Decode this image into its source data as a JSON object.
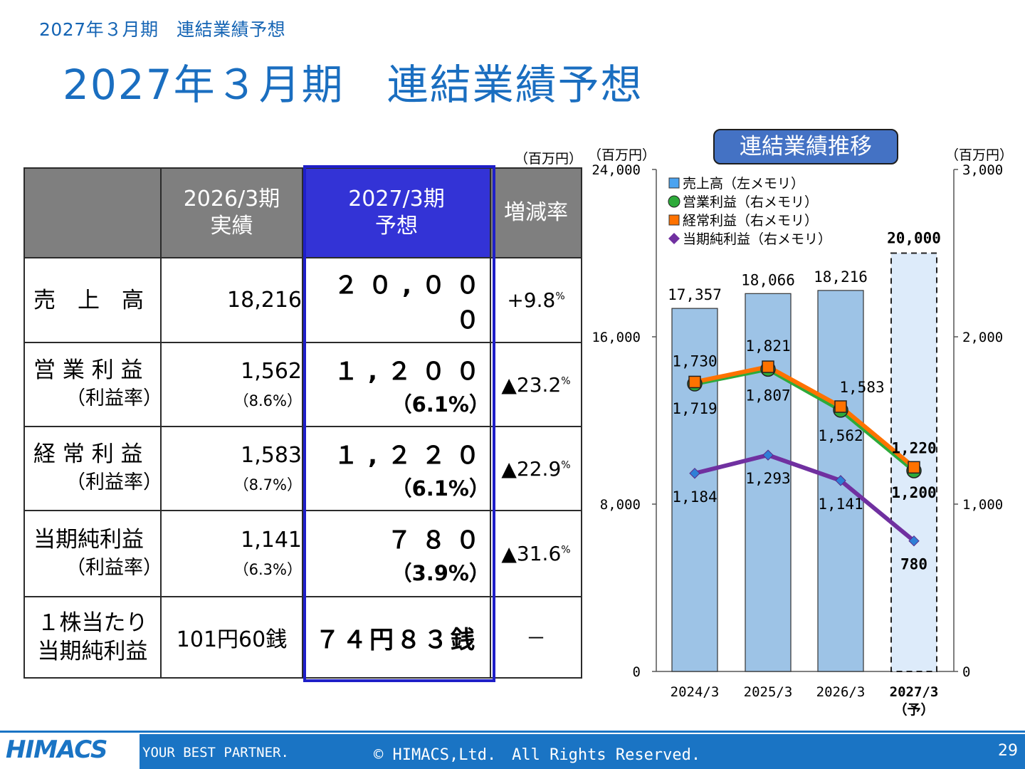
{
  "header": {
    "small": "2027年３月期　連結業績予想",
    "title": "2027年３月期　連結業績予想"
  },
  "table": {
    "unit": "（百万円）",
    "headers": [
      "",
      "2026/3期\n実績",
      "2027/3期\n予想",
      "増減率"
    ],
    "rows": [
      {
        "label": "売　上　高",
        "sub": "",
        "actual": "18,216",
        "actual_sub": "",
        "forecast": "２０,０００",
        "forecast_sub": "",
        "change": "+9.8",
        "pct": "%"
      },
      {
        "label": "営 業 利 益",
        "sub": "（利益率）",
        "actual": "1,562",
        "actual_sub": "（8.6%）",
        "forecast": "１,２００",
        "forecast_sub": "（6.1%）",
        "change": "▲23.2",
        "pct": "%"
      },
      {
        "label": "経 常 利 益",
        "sub": "（利益率）",
        "actual": "1,583",
        "actual_sub": "（8.7%）",
        "forecast": "１,２２０",
        "forecast_sub": "（6.1%）",
        "change": "▲22.9",
        "pct": "%"
      },
      {
        "label": "当期純利益",
        "sub": "（利益率）",
        "actual": "1,141",
        "actual_sub": "（6.3%）",
        "forecast": "７８０",
        "forecast_sub": "（3.9%）",
        "change": "▲31.6",
        "pct": "%"
      },
      {
        "label": "１株当たり",
        "sub": "当期純利益",
        "actual": "101円60銭",
        "actual_sub": "",
        "forecast": "７４円８３銭",
        "forecast_sub": "",
        "change": "－",
        "pct": ""
      }
    ]
  },
  "chart_title": "連結業績推移",
  "chart_data": {
    "type": "bar",
    "categories": [
      "2024/3",
      "2025/3",
      "2026/3",
      "2027/3\n（予）"
    ],
    "left_unit": "（百万円）",
    "right_unit": "（百万円）",
    "left_ticks": [
      "0",
      "8,000",
      "16,000",
      "24,000"
    ],
    "right_ticks": [
      "0",
      "1,000",
      "2,000",
      "3,000"
    ],
    "ylim_left": [
      0,
      24000
    ],
    "ylim_right": [
      0,
      3000
    ],
    "series": [
      {
        "name": "売上高（左メモリ）",
        "kind": "bar",
        "axis": "left",
        "color": "#9dc3e6",
        "values": [
          17357,
          18066,
          18216,
          20000
        ],
        "labels": [
          "17,357",
          "18,066",
          "18,216",
          "20,000"
        ]
      },
      {
        "name": "営業利益（右メモリ）",
        "kind": "line",
        "axis": "right",
        "color": "#2eaa3a",
        "values": [
          1719,
          1807,
          1562,
          1200
        ],
        "labels": [
          "1,719",
          "1,807",
          "1,562",
          "1,200"
        ]
      },
      {
        "name": "経常利益（右メモリ）",
        "kind": "line",
        "axis": "right",
        "color": "#ff7200",
        "values": [
          1730,
          1821,
          1583,
          1220
        ],
        "labels": [
          "1,730",
          "1,821",
          "1,583",
          "1,220"
        ]
      },
      {
        "name": "当期純利益（右メモリ）",
        "kind": "line",
        "axis": "right",
        "color": "#7030a0",
        "values": [
          1184,
          1293,
          1141,
          780
        ],
        "labels": [
          "1,184",
          "1,293",
          "1,141",
          "780"
        ]
      }
    ],
    "forecast_last": true,
    "legend": "top-left"
  },
  "footer": {
    "logo": "HIMACS",
    "tagline": "YOUR BEST PARTNER.",
    "copyright": "© HIMACS,Ltd.　All Rights Reserved.",
    "page": "29"
  },
  "colors": {
    "title": "#1a6ec0",
    "header_gray": "#7f7f7f",
    "header_highlight": "#3333d6",
    "footer": "#1a74c4"
  }
}
